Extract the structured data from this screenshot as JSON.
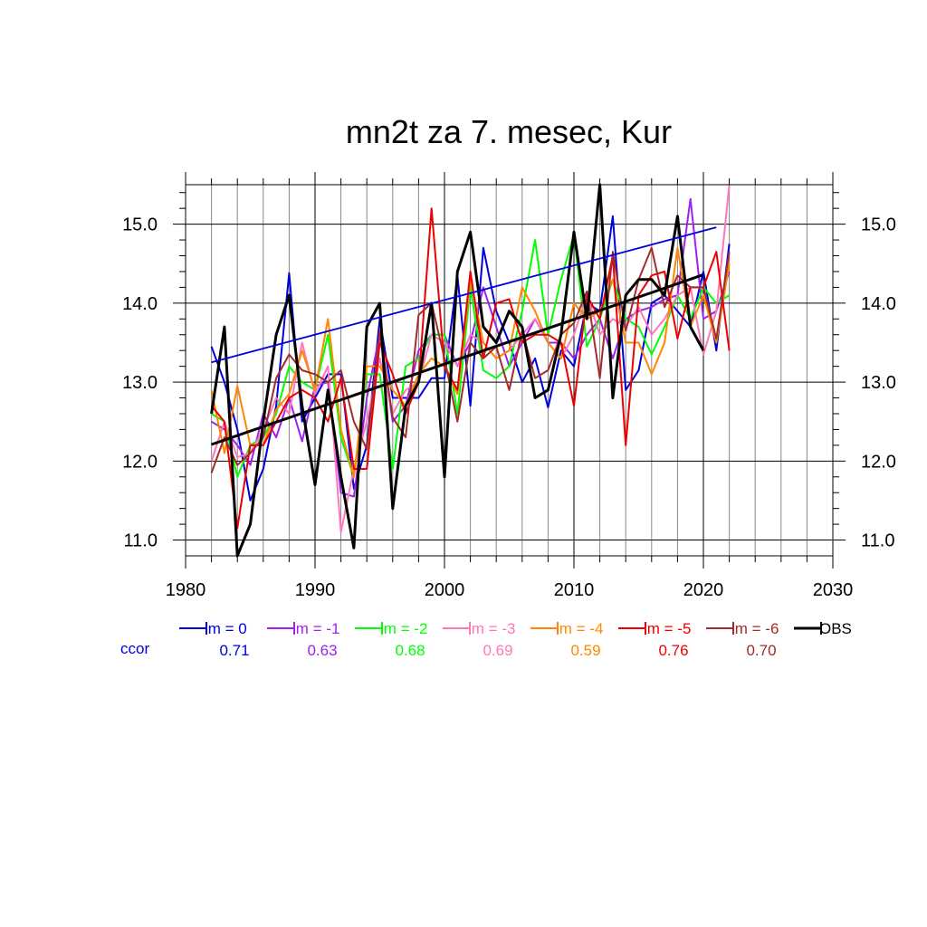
{
  "chart_data": {
    "type": "line",
    "title": "mn2t za 7. mesec, Kur",
    "xlabel": "",
    "ylabel": "",
    "xlim": [
      1980,
      2030
    ],
    "ylim": [
      10.8,
      15.5
    ],
    "x_ticks": [
      1980,
      1990,
      2000,
      2010,
      2020,
      2030
    ],
    "x_tick_labels": [
      "1980",
      "1990",
      "2000",
      "2010",
      "2020",
      "2030"
    ],
    "y_ticks": [
      11.0,
      12.0,
      13.0,
      14.0,
      15.0
    ],
    "y_tick_labels": [
      "11.0",
      "12.0",
      "13.0",
      "14.0",
      "15.0"
    ],
    "grid": true,
    "legend_position": "bottom",
    "ccor_label": "ccor",
    "series": [
      {
        "name": "lm = 0",
        "color": "#0000dd",
        "ccor": "0.71",
        "x_start": 1982,
        "values": [
          13.45,
          13.0,
          12.4,
          11.5,
          11.9,
          12.7,
          14.38,
          12.5,
          12.8,
          13.1,
          13.1,
          11.65,
          12.2,
          13.8,
          12.8,
          12.8,
          12.8,
          13.05,
          13.05,
          14.35,
          12.7,
          14.7,
          13.9,
          13.5,
          13.0,
          13.3,
          12.68,
          13.4,
          13.2,
          14.0,
          13.9,
          15.1,
          12.9,
          13.15,
          14.0,
          14.1,
          13.9,
          13.7,
          14.4,
          13.4,
          14.75
        ]
      },
      {
        "name": "lm = -1",
        "color": "#a020f0",
        "ccor": "0.63",
        "x_start": 1982,
        "values": [
          12.5,
          12.4,
          12.2,
          11.95,
          12.6,
          12.3,
          12.8,
          12.25,
          12.95,
          13.0,
          11.6,
          11.55,
          12.8,
          13.6,
          12.5,
          12.7,
          13.4,
          13.6,
          13.6,
          13.2,
          13.5,
          14.2,
          13.7,
          13.2,
          13.5,
          13.8,
          13.5,
          13.5,
          13.3,
          13.6,
          13.8,
          13.3,
          13.8,
          13.9,
          13.95,
          14.05,
          14.1,
          15.32,
          13.8,
          13.9,
          14.4
        ]
      },
      {
        "name": "lm = -2",
        "color": "#00ff00",
        "ccor": "0.68",
        "x_start": 1982,
        "values": [
          12.6,
          12.5,
          11.8,
          12.2,
          12.3,
          12.6,
          13.2,
          13.0,
          12.9,
          13.6,
          12.3,
          11.8,
          13.1,
          13.1,
          11.9,
          13.2,
          13.3,
          13.6,
          13.6,
          12.6,
          14.2,
          13.15,
          13.05,
          13.2,
          13.9,
          14.8,
          13.6,
          14.3,
          14.87,
          13.45,
          13.8,
          14.3,
          13.8,
          13.7,
          13.35,
          13.7,
          14.1,
          13.8,
          14.2,
          14.0,
          14.1
        ]
      },
      {
        "name": "lm = -3",
        "color": "#ff77bb",
        "ccor": "0.69",
        "x_start": 1982,
        "values": [
          12.0,
          12.5,
          12.05,
          12.1,
          12.4,
          12.8,
          12.6,
          13.5,
          12.85,
          13.2,
          11.1,
          11.9,
          12.5,
          13.3,
          12.6,
          12.9,
          13.0,
          13.6,
          13.5,
          13.2,
          13.6,
          13.5,
          13.3,
          13.4,
          13.6,
          13.8,
          13.5,
          13.3,
          13.6,
          14.1,
          13.6,
          13.8,
          13.7,
          13.95,
          13.6,
          13.8,
          14.1,
          14.2,
          13.35,
          13.9,
          15.5
        ]
      },
      {
        "name": "lm = -4",
        "color": "#ff8800",
        "ccor": "0.59",
        "x_start": 1982,
        "values": [
          12.9,
          12.1,
          12.95,
          12.2,
          12.2,
          12.65,
          12.85,
          13.4,
          12.9,
          13.8,
          12.4,
          11.8,
          13.2,
          13.2,
          12.9,
          12.7,
          13.1,
          13.3,
          13.2,
          12.85,
          14.3,
          13.5,
          13.3,
          13.4,
          14.2,
          13.9,
          13.5,
          13.3,
          14.0,
          13.8,
          13.9,
          14.3,
          13.5,
          13.5,
          13.1,
          13.5,
          14.7,
          13.7,
          14.1,
          13.5,
          14.5
        ]
      },
      {
        "name": "lm = -5",
        "color": "#ee0000",
        "ccor": "0.76",
        "x_start": 1982,
        "values": [
          12.7,
          12.5,
          11.15,
          12.2,
          12.2,
          12.5,
          12.8,
          12.9,
          12.8,
          12.5,
          13.05,
          11.9,
          11.9,
          13.5,
          13.1,
          12.6,
          13.0,
          15.2,
          13.2,
          12.9,
          14.4,
          13.3,
          14.0,
          14.05,
          13.5,
          13.6,
          13.6,
          13.5,
          12.7,
          14.1,
          13.8,
          14.6,
          12.2,
          14.1,
          14.35,
          14.4,
          13.55,
          14.2,
          14.2,
          14.65,
          13.4
        ]
      },
      {
        "name": "lm = -6",
        "color": "#a52a2a",
        "ccor": "0.70",
        "x_start": 1982,
        "values": [
          11.85,
          12.3,
          11.95,
          12.1,
          12.3,
          13.05,
          13.35,
          13.15,
          13.1,
          13.0,
          13.15,
          12.5,
          12.15,
          13.65,
          12.55,
          12.3,
          13.85,
          14.0,
          13.3,
          12.5,
          13.5,
          13.3,
          13.45,
          12.9,
          13.65,
          13.05,
          13.15,
          13.6,
          13.75,
          14.15,
          13.05,
          14.65,
          13.65,
          14.3,
          14.7,
          13.95,
          14.35,
          14.2,
          14.2,
          13.55,
          14.65
        ]
      },
      {
        "name": "OBS",
        "color": "#000000",
        "ccor": "",
        "x_start": 1982,
        "values": [
          12.6,
          13.7,
          10.8,
          11.2,
          12.5,
          13.6,
          14.1,
          12.7,
          11.7,
          12.9,
          11.8,
          10.9,
          13.7,
          14.0,
          11.4,
          12.7,
          13.0,
          14.0,
          11.8,
          14.4,
          14.9,
          13.7,
          13.5,
          13.9,
          13.7,
          12.8,
          12.9,
          13.6,
          14.9,
          13.8,
          15.5,
          12.8,
          14.1,
          14.3,
          14.3,
          14.1,
          15.1,
          13.7,
          13.4
        ]
      }
    ],
    "trend_lines": [
      {
        "name": "lm = 0 trend",
        "color": "#0000dd",
        "x": [
          1982,
          2021
        ],
        "y": [
          13.25,
          14.96
        ]
      },
      {
        "name": "OBS trend",
        "color": "#000000",
        "x": [
          1982,
          2020
        ],
        "y": [
          12.21,
          14.36
        ]
      }
    ]
  }
}
